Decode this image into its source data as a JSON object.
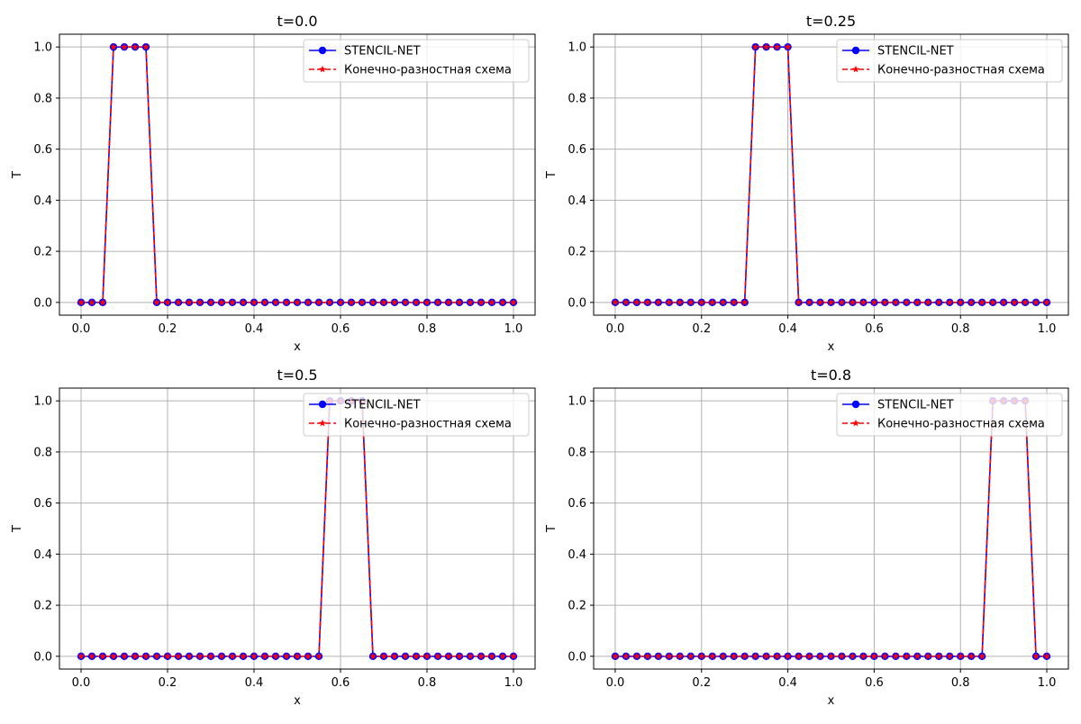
{
  "figure": {
    "background": "#ffffff",
    "grid_color": "#b0b0b0",
    "series_colors": {
      "stencil": "#0000ff",
      "fd": "#ff0000"
    }
  },
  "chart_data": [
    {
      "type": "line",
      "title": "t=0.0",
      "xlabel": "x",
      "ylabel": "T",
      "xlim": [
        -0.05,
        1.05
      ],
      "ylim": [
        -0.05,
        1.05
      ],
      "xticks": [
        0.0,
        0.2,
        0.4,
        0.6,
        0.8,
        1.0
      ],
      "xtick_labels": [
        "0.0",
        "0.2",
        "0.4",
        "0.6",
        "0.8",
        "1.0"
      ],
      "yticks": [
        0.0,
        0.2,
        0.4,
        0.6,
        0.8,
        1.0
      ],
      "ytick_labels": [
        "0.0",
        "0.2",
        "0.4",
        "0.6",
        "0.8",
        "1.0"
      ],
      "grid": true,
      "legend_position": "top-right",
      "x": [
        0.0,
        0.025,
        0.05,
        0.075,
        0.1,
        0.125,
        0.15,
        0.175,
        0.2,
        0.225,
        0.25,
        0.275,
        0.3,
        0.325,
        0.35,
        0.375,
        0.4,
        0.425,
        0.45,
        0.475,
        0.5,
        0.525,
        0.55,
        0.575,
        0.6,
        0.625,
        0.65,
        0.675,
        0.7,
        0.725,
        0.75,
        0.775,
        0.8,
        0.825,
        0.85,
        0.875,
        0.9,
        0.925,
        0.95,
        0.975,
        1.0
      ],
      "series": [
        {
          "name": "STENCIL-NET",
          "color": "#0000ff",
          "line_style": "solid",
          "marker": "circle",
          "values": [
            0,
            0,
            0,
            1,
            1,
            1,
            1,
            0,
            0,
            0,
            0,
            0,
            0,
            0,
            0,
            0,
            0,
            0,
            0,
            0,
            0,
            0,
            0,
            0,
            0,
            0,
            0,
            0,
            0,
            0,
            0,
            0,
            0,
            0,
            0,
            0,
            0,
            0,
            0,
            0,
            0
          ]
        },
        {
          "name": "Конечно-разностная схема",
          "color": "#ff0000",
          "line_style": "dashed",
          "marker": "star",
          "values": [
            0,
            0,
            0,
            1,
            1,
            1,
            1,
            0,
            0,
            0,
            0,
            0,
            0,
            0,
            0,
            0,
            0,
            0,
            0,
            0,
            0,
            0,
            0,
            0,
            0,
            0,
            0,
            0,
            0,
            0,
            0,
            0,
            0,
            0,
            0,
            0,
            0,
            0,
            0,
            0,
            0
          ]
        }
      ]
    },
    {
      "type": "line",
      "title": "t=0.25",
      "xlabel": "x",
      "ylabel": "T",
      "xlim": [
        -0.05,
        1.05
      ],
      "ylim": [
        -0.05,
        1.05
      ],
      "xticks": [
        0.0,
        0.2,
        0.4,
        0.6,
        0.8,
        1.0
      ],
      "xtick_labels": [
        "0.0",
        "0.2",
        "0.4",
        "0.6",
        "0.8",
        "1.0"
      ],
      "yticks": [
        0.0,
        0.2,
        0.4,
        0.6,
        0.8,
        1.0
      ],
      "ytick_labels": [
        "0.0",
        "0.2",
        "0.4",
        "0.6",
        "0.8",
        "1.0"
      ],
      "grid": true,
      "legend_position": "top-right",
      "x": [
        0.0,
        0.025,
        0.05,
        0.075,
        0.1,
        0.125,
        0.15,
        0.175,
        0.2,
        0.225,
        0.25,
        0.275,
        0.3,
        0.325,
        0.35,
        0.375,
        0.4,
        0.425,
        0.45,
        0.475,
        0.5,
        0.525,
        0.55,
        0.575,
        0.6,
        0.625,
        0.65,
        0.675,
        0.7,
        0.725,
        0.75,
        0.775,
        0.8,
        0.825,
        0.85,
        0.875,
        0.9,
        0.925,
        0.95,
        0.975,
        1.0
      ],
      "series": [
        {
          "name": "STENCIL-NET",
          "color": "#0000ff",
          "line_style": "solid",
          "marker": "circle",
          "values": [
            0,
            0,
            0,
            0,
            0,
            0,
            0,
            0,
            0,
            0,
            0,
            0,
            0,
            1,
            1,
            1,
            1,
            0,
            0,
            0,
            0,
            0,
            0,
            0,
            0,
            0,
            0,
            0,
            0,
            0,
            0,
            0,
            0,
            0,
            0,
            0,
            0,
            0,
            0,
            0,
            0
          ]
        },
        {
          "name": "Конечно-разностная схема",
          "color": "#ff0000",
          "line_style": "dashed",
          "marker": "star",
          "values": [
            0,
            0,
            0,
            0,
            0,
            0,
            0,
            0,
            0,
            0,
            0,
            0,
            0,
            1,
            1,
            1,
            1,
            0,
            0,
            0,
            0,
            0,
            0,
            0,
            0,
            0,
            0,
            0,
            0,
            0,
            0,
            0,
            0,
            0,
            0,
            0,
            0,
            0,
            0,
            0,
            0
          ]
        }
      ]
    },
    {
      "type": "line",
      "title": "t=0.5",
      "xlabel": "x",
      "ylabel": "T",
      "xlim": [
        -0.05,
        1.05
      ],
      "ylim": [
        -0.05,
        1.05
      ],
      "xticks": [
        0.0,
        0.2,
        0.4,
        0.6,
        0.8,
        1.0
      ],
      "xtick_labels": [
        "0.0",
        "0.2",
        "0.4",
        "0.6",
        "0.8",
        "1.0"
      ],
      "yticks": [
        0.0,
        0.2,
        0.4,
        0.6,
        0.8,
        1.0
      ],
      "ytick_labels": [
        "0.0",
        "0.2",
        "0.4",
        "0.6",
        "0.8",
        "1.0"
      ],
      "grid": true,
      "legend_position": "top-right",
      "x": [
        0.0,
        0.025,
        0.05,
        0.075,
        0.1,
        0.125,
        0.15,
        0.175,
        0.2,
        0.225,
        0.25,
        0.275,
        0.3,
        0.325,
        0.35,
        0.375,
        0.4,
        0.425,
        0.45,
        0.475,
        0.5,
        0.525,
        0.55,
        0.575,
        0.6,
        0.625,
        0.65,
        0.675,
        0.7,
        0.725,
        0.75,
        0.775,
        0.8,
        0.825,
        0.85,
        0.875,
        0.9,
        0.925,
        0.95,
        0.975,
        1.0
      ],
      "series": [
        {
          "name": "STENCIL-NET",
          "color": "#0000ff",
          "line_style": "solid",
          "marker": "circle",
          "values": [
            0,
            0,
            0,
            0,
            0,
            0,
            0,
            0,
            0,
            0,
            0,
            0,
            0,
            0,
            0,
            0,
            0,
            0,
            0,
            0,
            0,
            0,
            0,
            1,
            1,
            1,
            1,
            0,
            0,
            0,
            0,
            0,
            0,
            0,
            0,
            0,
            0,
            0,
            0,
            0,
            0
          ]
        },
        {
          "name": "Конечно-разностная схема",
          "color": "#ff0000",
          "line_style": "dashed",
          "marker": "star",
          "values": [
            0,
            0,
            0,
            0,
            0,
            0,
            0,
            0,
            0,
            0,
            0,
            0,
            0,
            0,
            0,
            0,
            0,
            0,
            0,
            0,
            0,
            0,
            0,
            1,
            1,
            1,
            1,
            0,
            0,
            0,
            0,
            0,
            0,
            0,
            0,
            0,
            0,
            0,
            0,
            0,
            0
          ]
        }
      ]
    },
    {
      "type": "line",
      "title": "t=0.8",
      "xlabel": "x",
      "ylabel": "T",
      "xlim": [
        -0.05,
        1.05
      ],
      "ylim": [
        -0.05,
        1.05
      ],
      "xticks": [
        0.0,
        0.2,
        0.4,
        0.6,
        0.8,
        1.0
      ],
      "xtick_labels": [
        "0.0",
        "0.2",
        "0.4",
        "0.6",
        "0.8",
        "1.0"
      ],
      "yticks": [
        0.0,
        0.2,
        0.4,
        0.6,
        0.8,
        1.0
      ],
      "ytick_labels": [
        "0.0",
        "0.2",
        "0.4",
        "0.6",
        "0.8",
        "1.0"
      ],
      "grid": true,
      "legend_position": "top-right",
      "x": [
        0.0,
        0.025,
        0.05,
        0.075,
        0.1,
        0.125,
        0.15,
        0.175,
        0.2,
        0.225,
        0.25,
        0.275,
        0.3,
        0.325,
        0.35,
        0.375,
        0.4,
        0.425,
        0.45,
        0.475,
        0.5,
        0.525,
        0.55,
        0.575,
        0.6,
        0.625,
        0.65,
        0.675,
        0.7,
        0.725,
        0.75,
        0.775,
        0.8,
        0.825,
        0.85,
        0.875,
        0.9,
        0.925,
        0.95,
        0.975,
        1.0
      ],
      "series": [
        {
          "name": "STENCIL-NET",
          "color": "#0000ff",
          "line_style": "solid",
          "marker": "circle",
          "values": [
            0,
            0,
            0,
            0,
            0,
            0,
            0,
            0,
            0,
            0,
            0,
            0,
            0,
            0,
            0,
            0,
            0,
            0,
            0,
            0,
            0,
            0,
            0,
            0,
            0,
            0,
            0,
            0,
            0,
            0,
            0,
            0,
            0,
            0,
            0,
            1,
            1,
            1,
            1,
            0,
            0
          ]
        },
        {
          "name": "Конечно-разностная схема",
          "color": "#ff0000",
          "line_style": "dashed",
          "marker": "star",
          "values": [
            0,
            0,
            0,
            0,
            0,
            0,
            0,
            0,
            0,
            0,
            0,
            0,
            0,
            0,
            0,
            0,
            0,
            0,
            0,
            0,
            0,
            0,
            0,
            0,
            0,
            0,
            0,
            0,
            0,
            0,
            0,
            0,
            0,
            0,
            0,
            1,
            1,
            1,
            1,
            0,
            0
          ]
        }
      ]
    }
  ]
}
